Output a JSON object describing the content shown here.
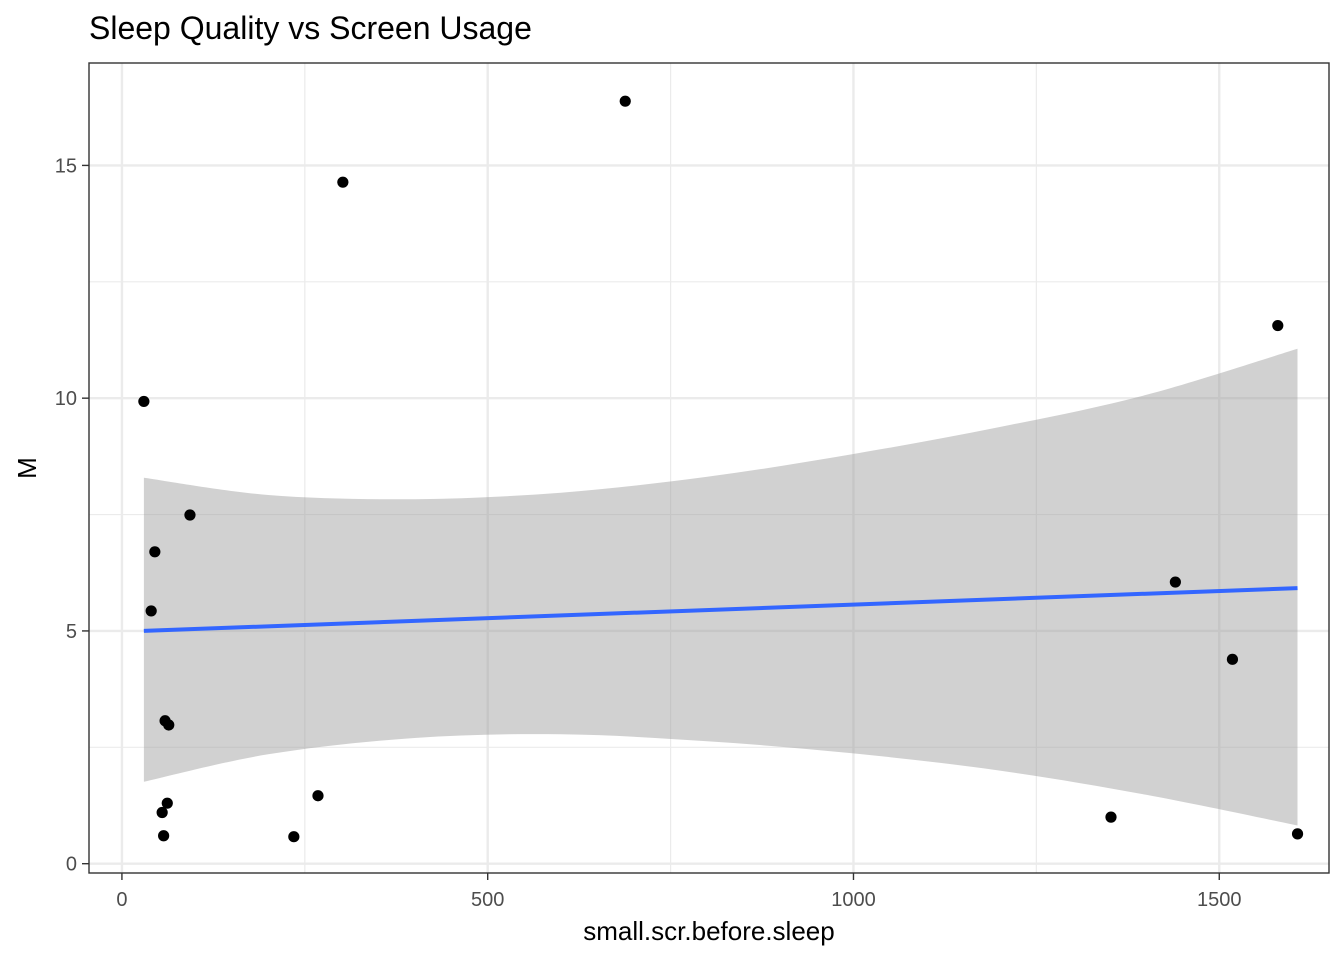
{
  "chart_data": {
    "type": "scatter",
    "title": "Sleep Quality vs Screen Usage",
    "xlabel": "small.scr.before.sleep",
    "ylabel": "M",
    "xlim": [
      -45,
      1650
    ],
    "ylim": [
      -0.2,
      17.2
    ],
    "x_ticks": [
      0,
      500,
      1000,
      1500
    ],
    "x_tick_labels": [
      "0",
      "500",
      "1000",
      "1500"
    ],
    "x_minor": [
      250,
      750,
      1250
    ],
    "y_ticks": [
      0,
      5,
      10,
      15
    ],
    "y_tick_labels": [
      "0",
      "5",
      "10",
      "15"
    ],
    "y_minor": [
      2.5,
      7.5,
      12.5
    ],
    "grid": true,
    "legend": "none",
    "points": [
      {
        "x": 30,
        "y": 9.93
      },
      {
        "x": 40,
        "y": 5.43
      },
      {
        "x": 45,
        "y": 6.7
      },
      {
        "x": 55,
        "y": 1.1
      },
      {
        "x": 57,
        "y": 0.6
      },
      {
        "x": 59,
        "y": 3.07
      },
      {
        "x": 62,
        "y": 1.3
      },
      {
        "x": 64,
        "y": 2.98
      },
      {
        "x": 93,
        "y": 7.49
      },
      {
        "x": 235,
        "y": 0.58
      },
      {
        "x": 268,
        "y": 1.46
      },
      {
        "x": 302,
        "y": 14.64
      },
      {
        "x": 688,
        "y": 16.38
      },
      {
        "x": 1352,
        "y": 1.0
      },
      {
        "x": 1440,
        "y": 6.05
      },
      {
        "x": 1518,
        "y": 4.39
      },
      {
        "x": 1580,
        "y": 11.56
      },
      {
        "x": 1607,
        "y": 0.64
      }
    ],
    "trend_line": {
      "x": [
        30,
        1607
      ],
      "y": [
        5.0,
        5.92
      ]
    },
    "confidence_band": {
      "x": [
        30,
        200,
        400,
        600,
        800,
        1000,
        1200,
        1400,
        1607
      ],
      "lower": [
        1.76,
        2.35,
        2.7,
        2.78,
        2.63,
        2.37,
        2.0,
        1.48,
        0.82
      ],
      "upper": [
        8.29,
        7.92,
        7.83,
        7.97,
        8.31,
        8.8,
        9.38,
        10.07,
        11.06
      ]
    },
    "colors": {
      "point": "#000000",
      "line": "#3366ff",
      "band": "#999999",
      "grid": "#ebebeb",
      "panel_border": "#333333"
    }
  }
}
